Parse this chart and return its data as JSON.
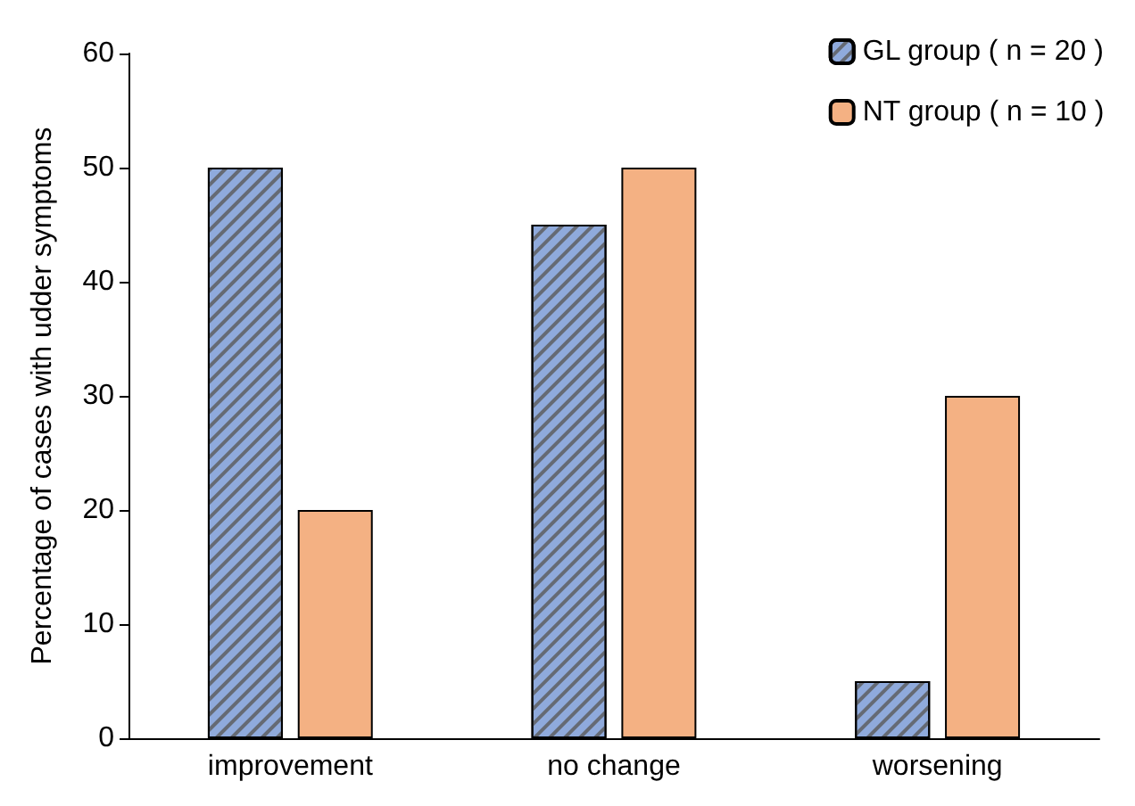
{
  "chart_data": {
    "type": "bar",
    "ylabel": "Percentage of cases with udder symptoms",
    "categories": [
      "improvement",
      "no change",
      "worsening"
    ],
    "series": [
      {
        "name": "GL group ( n = 20 )",
        "color": "#8faadc",
        "values": [
          50,
          45,
          5
        ]
      },
      {
        "name": "NT group ( n = 10 )",
        "color": "#f4b183",
        "values": [
          20,
          50,
          30
        ]
      }
    ],
    "ylim": [
      0,
      60
    ],
    "yticks": [
      0,
      10,
      20,
      30,
      40,
      50,
      60
    ],
    "grid": false,
    "legend": "top right"
  }
}
